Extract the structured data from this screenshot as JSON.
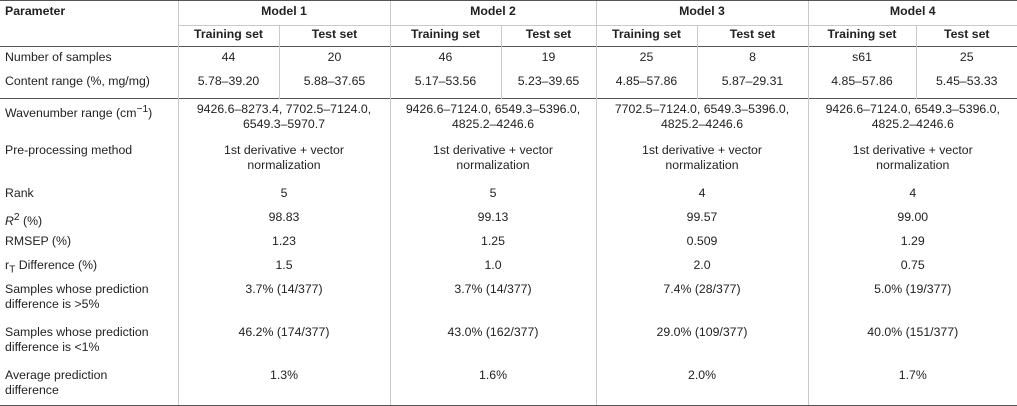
{
  "header": {
    "parameter": "Parameter",
    "models": [
      "Model 1",
      "Model 2",
      "Model 3",
      "Model 4"
    ],
    "training": "Training set",
    "test": "Test set"
  },
  "rows": {
    "samples": {
      "label": "Number of samples",
      "values": [
        "44",
        "20",
        "46",
        "19",
        "25",
        "8",
        "s61",
        "25"
      ]
    },
    "content": {
      "label": "Content range (%, mg/mg)",
      "values": [
        "5.78–39.20",
        "5.88–37.65",
        "5.17–53.56",
        "5.23–39.65",
        "4.85–57.86",
        "5.87–29.31",
        "4.85–57.86",
        "5.45–53.33"
      ]
    },
    "wavenumber": {
      "label_prefix": "Wavenumber range (cm",
      "label_sup": "−1",
      "label_suffix": ")",
      "values": [
        [
          "9426.6–8273.4, 7702.5–7124.0,",
          "6549.3–5970.7"
        ],
        [
          "9426.6–7124.0, 6549.3–5396.0,",
          "4825.2–4246.6"
        ],
        [
          "7702.5–7124.0, 6549.3–5396.0,",
          "4825.2–4246.6"
        ],
        [
          "9426.6–7124.0, 6549.3–5396.0,",
          "4825.2–4246.6"
        ]
      ]
    },
    "preprocessing": {
      "label": "Pre-processing method",
      "values": [
        [
          "1st derivative + vector",
          "normalization"
        ],
        [
          "1st derivative + vector",
          "normalization"
        ],
        [
          "1st derivative + vector",
          "normalization"
        ],
        [
          "1st derivative + vector",
          "normalization"
        ]
      ]
    },
    "rank": {
      "label": "Rank",
      "values": [
        "5",
        "5",
        "4",
        "4"
      ]
    },
    "r2": {
      "label_base": "R",
      "label_sup": "2",
      "label_suffix": " (%)",
      "values": [
        "98.83",
        "99.13",
        "99.57",
        "99.00"
      ]
    },
    "rmsep": {
      "label": "RMSEP (%)",
      "values": [
        "1.23",
        "1.25",
        "0.509",
        "1.29"
      ]
    },
    "rt": {
      "label_base": "r",
      "label_sub": "T",
      "label_suffix": " Difference (%)",
      "values": [
        "1.5",
        "1.0",
        "2.0",
        "0.75"
      ]
    },
    "gt5": {
      "label": [
        "Samples whose prediction",
        "difference is >5%"
      ],
      "values": [
        "3.7% (14/377)",
        "3.7% (14/377)",
        "7.4% (28/377)",
        "5.0% (19/377)"
      ]
    },
    "lt1": {
      "label": [
        "Samples whose prediction",
        "difference is <1%"
      ],
      "values": [
        "46.2% (174/377)",
        "43.0% (162/377)",
        "29.0% (109/377)",
        "40.0% (151/377)"
      ]
    },
    "avg": {
      "label": [
        "Average prediction",
        "difference"
      ],
      "values": [
        "1.3%",
        "1.6%",
        "2.0%",
        "1.7%"
      ]
    }
  }
}
